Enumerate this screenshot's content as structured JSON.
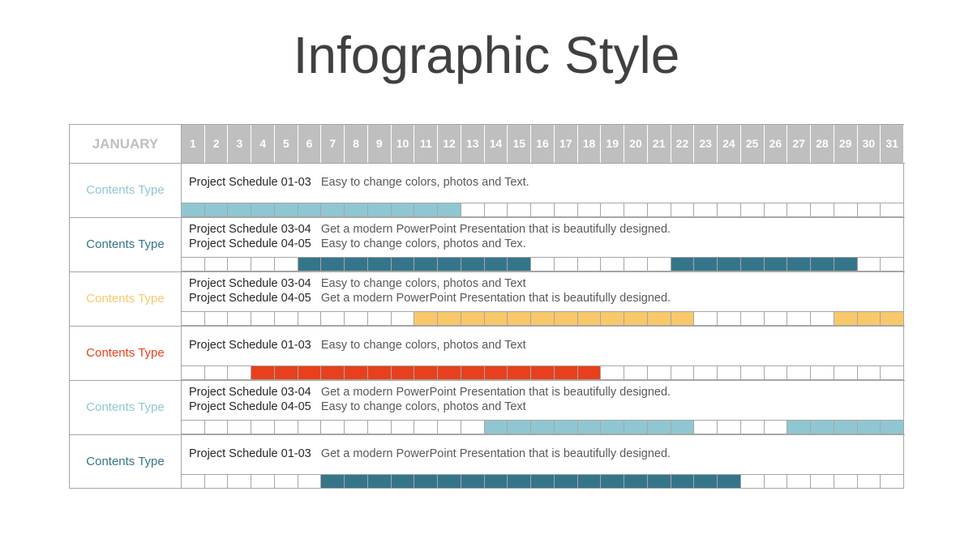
{
  "title": "Infographic Style",
  "month": "JANUARY",
  "days": [
    "1",
    "2",
    "3",
    "4",
    "5",
    "6",
    "7",
    "8",
    "9",
    "10",
    "11",
    "12",
    "13",
    "14",
    "15",
    "16",
    "17",
    "18",
    "19",
    "20",
    "21",
    "22",
    "23",
    "24",
    "25",
    "26",
    "27",
    "28",
    "29",
    "30",
    "31"
  ],
  "rows": [
    {
      "label": "Contents Type",
      "color": "#8ec7d2",
      "lines": [
        {
          "name": "Project Schedule 01-03",
          "desc": "Easy to change colors, photos and Text."
        }
      ],
      "filled": [
        [
          1,
          12
        ]
      ]
    },
    {
      "label": "Contents Type",
      "color": "#35758a",
      "lines": [
        {
          "name": "Project Schedule 03-04",
          "desc": "Get a modern PowerPoint  Presentation that is beautifully designed."
        },
        {
          "name": "Project Schedule 04-05",
          "desc": "Easy to change colors, photos and Tex."
        }
      ],
      "filled": [
        [
          6,
          15
        ],
        [
          22,
          29
        ]
      ]
    },
    {
      "label": "Contents Type",
      "color": "#f9c86b",
      "lines": [
        {
          "name": "Project Schedule 03-04",
          "desc": "Easy to change colors, photos and Text"
        },
        {
          "name": "Project Schedule 04-05",
          "desc": "Get a modern PowerPoint  Presentation that is beautifully designed."
        }
      ],
      "filled": [
        [
          11,
          22
        ],
        [
          29,
          31
        ]
      ]
    },
    {
      "label": "Contents Type",
      "color": "#e8401c",
      "lines": [
        {
          "name": "Project Schedule 01-03",
          "desc": "Easy to change colors, photos and Text"
        }
      ],
      "filled": [
        [
          4,
          18
        ]
      ]
    },
    {
      "label": "Contents Type",
      "color": "#8ec7d2",
      "lines": [
        {
          "name": "Project Schedule 03-04",
          "desc": "Get a modern PowerPoint  Presentation that is beautifully designed."
        },
        {
          "name": "Project Schedule 04-05",
          "desc": "Easy to change colors, photos and Text"
        }
      ],
      "filled": [
        [
          14,
          22
        ],
        [
          27,
          31
        ]
      ]
    },
    {
      "label": "Contents Type",
      "color": "#35758a",
      "lines": [
        {
          "name": "Project Schedule 01-03",
          "desc": "Get a modern PowerPoint  Presentation that is beautifully designed."
        }
      ],
      "filled": [
        [
          7,
          24
        ]
      ]
    }
  ]
}
